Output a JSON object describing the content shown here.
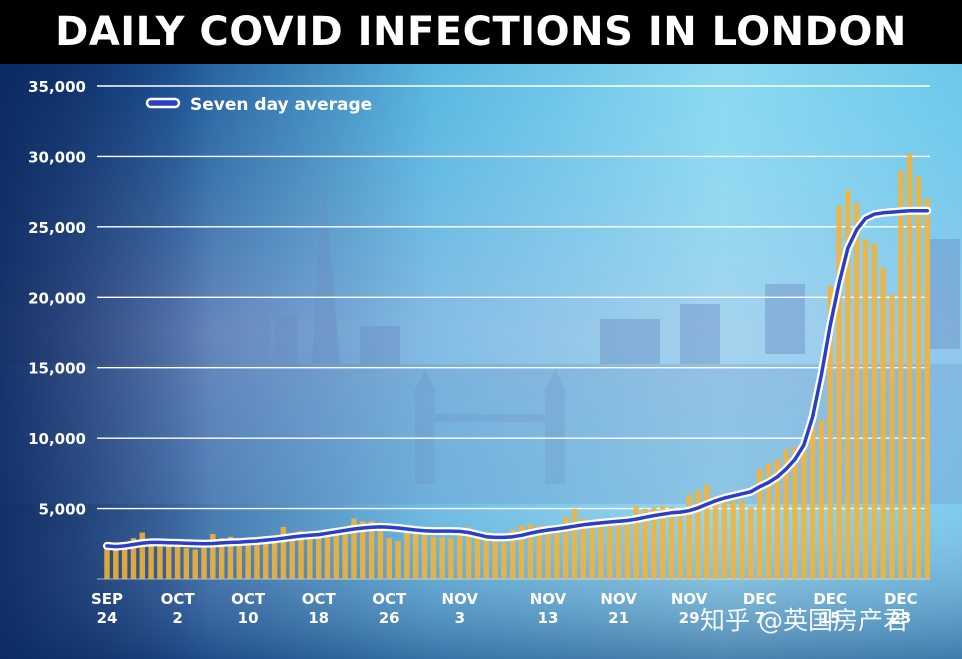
{
  "chart_data": {
    "type": "bar",
    "title": "DAILY COVID INFECTIONS IN LONDON",
    "ylim": [
      0,
      35000
    ],
    "yticks": [
      "35,000",
      "30,000",
      "25,000",
      "20,000",
      "15,000",
      "10,000",
      "5,000"
    ],
    "ytick_values": [
      35000,
      30000,
      25000,
      20000,
      15000,
      10000,
      5000
    ],
    "xticks": [
      {
        "day": 0,
        "line1": "SEP",
        "line2": "24"
      },
      {
        "day": 8,
        "line1": "OCT",
        "line2": "2"
      },
      {
        "day": 16,
        "line1": "OCT",
        "line2": "10"
      },
      {
        "day": 24,
        "line1": "OCT",
        "line2": "18"
      },
      {
        "day": 32,
        "line1": "OCT",
        "line2": "26"
      },
      {
        "day": 40,
        "line1": "NOV",
        "line2": "3"
      },
      {
        "day": 50,
        "line1": "NOV",
        "line2": "13"
      },
      {
        "day": 58,
        "line1": "NOV",
        "line2": "21"
      },
      {
        "day": 66,
        "line1": "NOV",
        "line2": "29"
      },
      {
        "day": 74,
        "line1": "DEC",
        "line2": "7"
      },
      {
        "day": 82,
        "line1": "DEC",
        "line2": "15"
      },
      {
        "day": 90,
        "line1": "DEC",
        "line2": "23"
      }
    ],
    "legend": "Seven day average",
    "series": [
      {
        "kind": "bar",
        "color": "#f5b335",
        "values": [
          2500,
          2300,
          2600,
          2900,
          3300,
          2700,
          2500,
          2600,
          2500,
          2200,
          2100,
          2200,
          3200,
          2900,
          3000,
          2800,
          2700,
          2600,
          2600,
          2900,
          3700,
          3100,
          3400,
          3300,
          3200,
          3300,
          3400,
          3500,
          4300,
          4100,
          4100,
          3900,
          2900,
          2700,
          3300,
          3200,
          3300,
          3000,
          3000,
          2900,
          3100,
          3700,
          3400,
          3000,
          2700,
          2600,
          3500,
          3800,
          3900,
          3800,
          3700,
          3700,
          4400,
          5000,
          4300,
          4200,
          4300,
          4100,
          4200,
          4400,
          5200,
          5000,
          5100,
          5200,
          5100,
          4800,
          6000,
          6300,
          6700,
          5900,
          5800,
          5500,
          5600,
          5100,
          7800,
          8200,
          8500,
          9200,
          9400,
          9300,
          10800,
          11300,
          20800,
          26500,
          27600,
          26700,
          24100,
          23800,
          22100,
          20200,
          29000,
          30200,
          28600,
          27000
        ],
        "display_scale": 0.4
      },
      {
        "kind": "line",
        "name": "Seven day average",
        "color": "#2a3fc4",
        "values": [
          2350,
          2300,
          2350,
          2450,
          2550,
          2600,
          2600,
          2580,
          2560,
          2540,
          2520,
          2500,
          2520,
          2560,
          2600,
          2620,
          2660,
          2700,
          2760,
          2820,
          2900,
          2980,
          3050,
          3100,
          3150,
          3250,
          3350,
          3450,
          3550,
          3620,
          3680,
          3700,
          3680,
          3620,
          3550,
          3480,
          3420,
          3400,
          3400,
          3400,
          3380,
          3300,
          3150,
          3000,
          2950,
          2950,
          3000,
          3100,
          3250,
          3380,
          3480,
          3560,
          3650,
          3750,
          3850,
          3920,
          3980,
          4050,
          4100,
          4150,
          4250,
          4380,
          4500,
          4600,
          4700,
          4750,
          4850,
          5050,
          5300,
          5550,
          5750,
          5900,
          6050,
          6200,
          6550,
          6850,
          7250,
          7800,
          8500,
          9500,
          11500,
          14500,
          18000,
          21000,
          23500,
          24800,
          25600,
          25900,
          26000,
          26050,
          26100,
          26150,
          26150,
          26150
        ]
      }
    ],
    "watermark": "知乎 @英国房产君"
  }
}
